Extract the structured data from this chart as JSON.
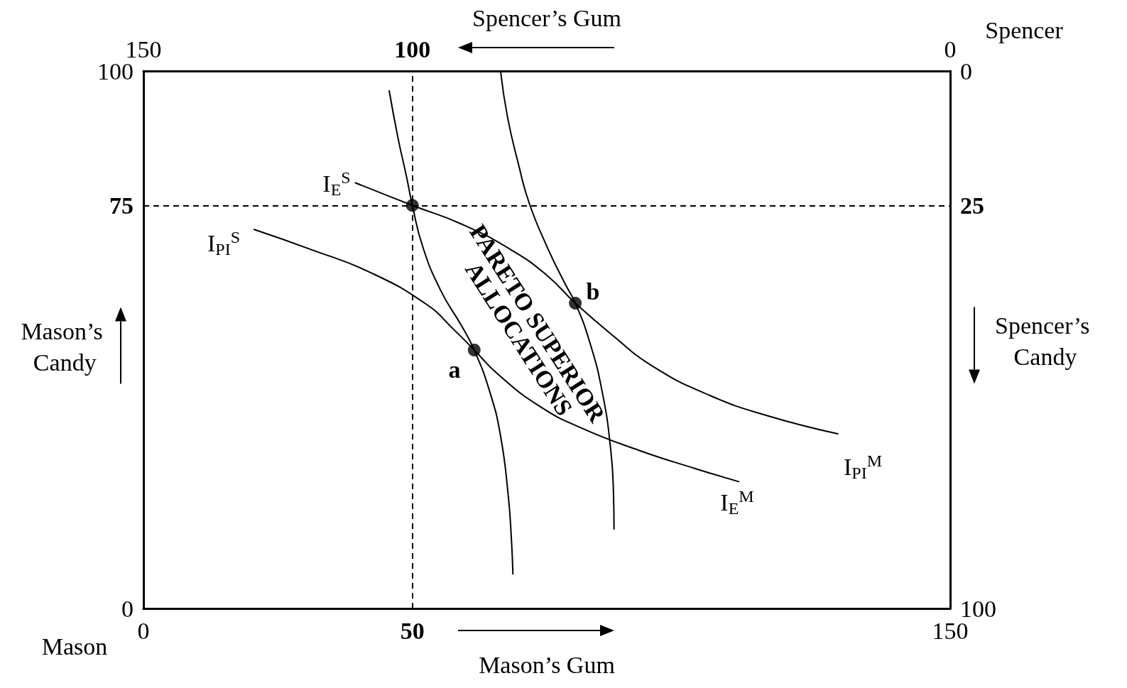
{
  "chart_data": {
    "type": "line",
    "xlabel": "Mason’s Gum",
    "x2label": "Spencer’s Gum",
    "ylabel": "Mason’s Candy",
    "y2label": "Spencer’s Candy",
    "xlim": [
      0,
      150
    ],
    "xticks": [
      0,
      50,
      150
    ],
    "x2lim": [
      150,
      0
    ],
    "x2ticks": [
      150,
      100,
      0
    ],
    "ylim": [
      0,
      100
    ],
    "yticks": [
      0,
      75,
      100
    ],
    "y2lim": [
      100,
      0
    ],
    "y2ticks": [
      0,
      25,
      100
    ],
    "grid": false,
    "marker": "none",
    "line_style": "solid",
    "ref_lines": [
      {
        "axis": "x",
        "value": 50,
        "color": "#000000",
        "line_style": "dashed"
      },
      {
        "axis": "y",
        "value": 75,
        "color": "#000000",
        "line_style": "dashed"
      }
    ],
    "series": [
      {
        "color": "#000000",
        "x": [
          45.7,
          47.3,
          48.9,
          50,
          51.9,
          55.2,
          59.2,
          61.5,
          64.4,
          66.4,
          67.8,
          68.4,
          68.7
        ],
        "values": [
          96.3,
          87.7,
          80.4,
          75,
          67.4,
          59.3,
          52.5,
          48.1,
          40.3,
          32.1,
          21.3,
          13.2,
          6.4
        ]
      },
      {
        "color": "#000000",
        "x": [
          66.4,
          67.7,
          69.7,
          71.7,
          75.0,
          78.3,
          80.3,
          82.9,
          85.3,
          86.9,
          87.4,
          87.5
        ],
        "values": [
          100,
          91.4,
          82.8,
          75.5,
          67.4,
          60.6,
          56.8,
          49.8,
          40.3,
          29.4,
          21.3,
          14.8
        ]
      },
      {
        "color": "#000000",
        "x": [
          39.4,
          50,
          59.2,
          68.4,
          75.0,
          80.3,
          86.9,
          94.8,
          105.4,
          115.9,
          129.1
        ],
        "values": [
          79.2,
          75,
          71.5,
          66.7,
          62.0,
          56.8,
          51.1,
          45.0,
          39.6,
          35.9,
          32.5
        ]
      },
      {
        "color": "#000000",
        "x": [
          20.6,
          31.4,
          42.0,
          52.6,
          57.8,
          61.5,
          65.8,
          73.7,
          81.6,
          92.2,
          102.7,
          110.7
        ],
        "values": [
          70.5,
          66.7,
          62.6,
          56.6,
          51.8,
          48.1,
          43.7,
          37.6,
          33.5,
          29.4,
          26.0,
          23.6
        ]
      },
      {
        "type": "scatter",
        "marker": "circle",
        "color": "#000000",
        "x": [
          50,
          61.5,
          80.3
        ],
        "values": [
          75,
          48.1,
          56.8
        ]
      }
    ],
    "annotations": [
      "Mason",
      "Spencer",
      "I$_{E}$$^{S}$",
      "I$_{PI}$$^{S}$",
      "I$_{E}$$^{M}$",
      "I$_{PI}$$^{M}$",
      "a",
      "b",
      "PARETO SUPERIOR ALLOCATIONS"
    ]
  }
}
